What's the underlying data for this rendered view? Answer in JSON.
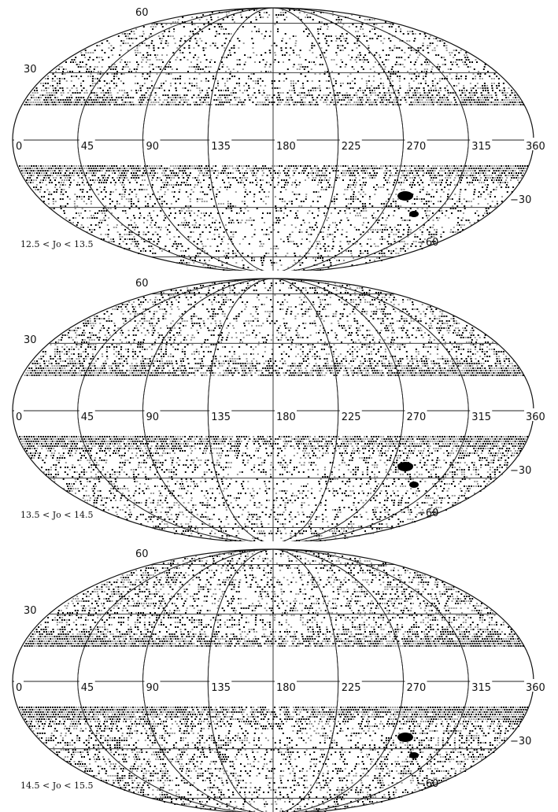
{
  "maps": [
    {
      "range_label": "12.5 < Jo < 13.5",
      "dots": {
        "pattern_seed": 11,
        "north_density": 0.3,
        "south_density": 0.3,
        "band_density": 0.85
      }
    },
    {
      "range_label": "13.5 < Jo < 14.5",
      "dots": {
        "pattern_seed": 23,
        "north_density": 0.36,
        "south_density": 0.36,
        "band_density": 0.9
      }
    },
    {
      "range_label": "14.5 < Jo < 15.5",
      "dots": {
        "pattern_seed": 37,
        "north_density": 0.42,
        "south_density": 0.42,
        "band_density": 0.95
      }
    }
  ],
  "longitude_labels": [
    "0",
    "45",
    "90",
    "135",
    "180",
    "225",
    "270",
    "315",
    "360"
  ],
  "latitude_labels": {
    "n60": "60",
    "n30": "30",
    "s30": "−30",
    "s60": "−60"
  },
  "colors": {
    "dense_star": "#000000",
    "faint_star": "#9a9a9a",
    "grid": "#222222",
    "background": "#ffffff"
  },
  "masked_band": "galactic plane masked (white band)"
}
